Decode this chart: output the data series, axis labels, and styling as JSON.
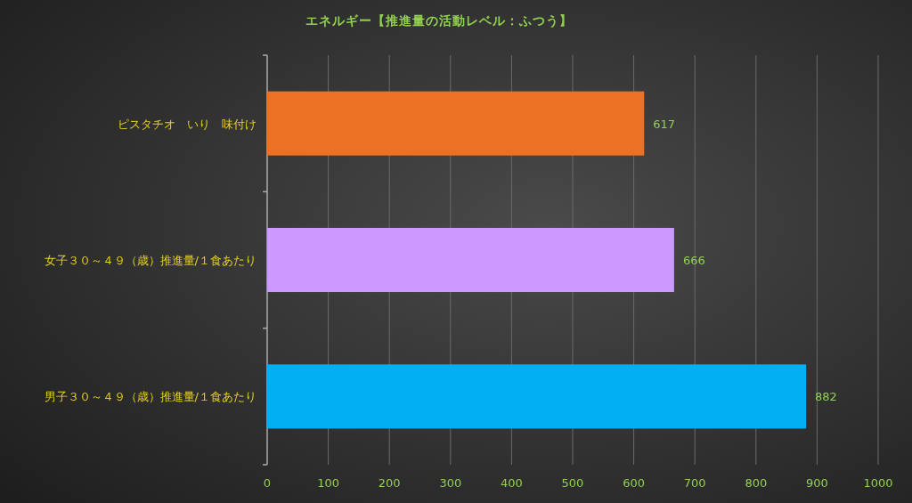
{
  "chart_data": {
    "type": "bar",
    "orientation": "horizontal",
    "title": "エネルギー【推進量の活動レベル：ふつう】",
    "categories": [
      "ピスタチオ　いり　味付け",
      "女子３０～４９（歳）推進量/１食あたり",
      "男子３０～４９（歳）推進量/１食あたり"
    ],
    "values": [
      617,
      666,
      882
    ],
    "colors": [
      "#ec7125",
      "#cc99ff",
      "#00b0f0"
    ],
    "xlim": [
      0,
      1000
    ],
    "xticks": [
      0,
      100,
      200,
      300,
      400,
      500,
      600,
      700,
      800,
      900,
      1000
    ],
    "grid": "x",
    "data_labels": true
  }
}
